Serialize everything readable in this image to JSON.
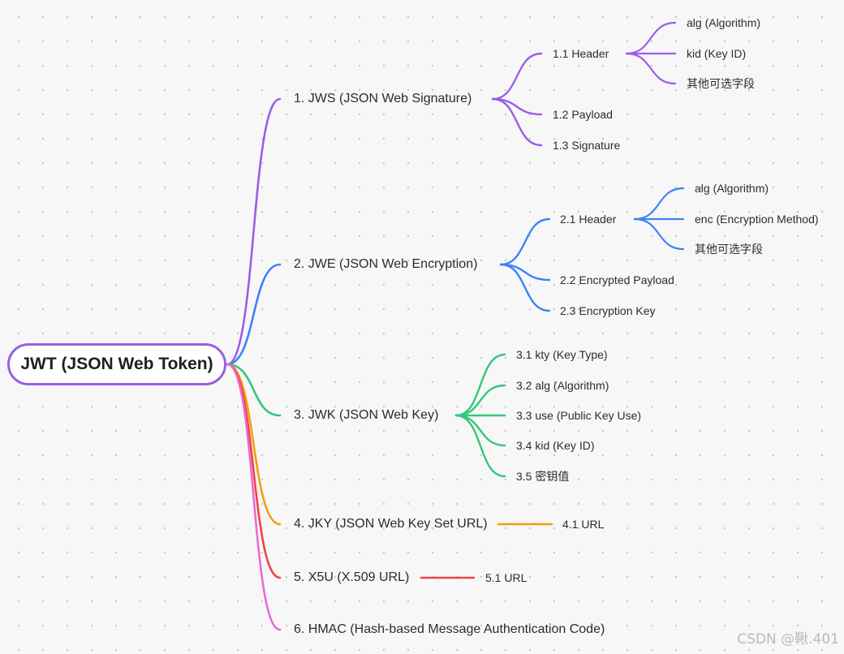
{
  "root": {
    "label": "JWT (JSON Web Token)",
    "color": "#9b5de5"
  },
  "branches": [
    {
      "label": "1. JWS (JSON Web Signature)",
      "color": "#9b5de5",
      "children": [
        {
          "label": "1.1 Header",
          "children": [
            "alg (Algorithm)",
            "kid (Key ID)",
            "其他可选字段"
          ]
        },
        {
          "label": "1.2 Payload",
          "children": []
        },
        {
          "label": "1.3 Signature",
          "children": []
        }
      ]
    },
    {
      "label": "2. JWE (JSON Web Encryption)",
      "color": "#3b82f6",
      "children": [
        {
          "label": "2.1 Header",
          "children": [
            "alg (Algorithm)",
            "enc (Encryption Method)",
            "其他可选字段"
          ]
        },
        {
          "label": "2.2 Encrypted Payload",
          "children": []
        },
        {
          "label": "2.3 Encryption Key",
          "children": []
        }
      ]
    },
    {
      "label": "3. JWK (JSON Web Key)",
      "color": "#34c77b",
      "children": [
        {
          "label": "3.1 kty (Key Type)",
          "children": []
        },
        {
          "label": "3.2 alg (Algorithm)",
          "children": []
        },
        {
          "label": "3.3 use (Public Key Use)",
          "children": []
        },
        {
          "label": "3.4 kid (Key ID)",
          "children": []
        },
        {
          "label": "3.5 密钥值",
          "children": []
        }
      ]
    },
    {
      "label": "4. JKY (JSON Web Key Set URL)",
      "color": "#f59e0b",
      "children": [
        {
          "label": "4.1 URL",
          "children": []
        }
      ]
    },
    {
      "label": "5. X5U (X.509 URL)",
      "color": "#ef4444",
      "children": [
        {
          "label": "5.1 URL",
          "children": []
        }
      ]
    },
    {
      "label": "6. HMAC (Hash-based Message Authentication Code)",
      "color": "#e86ad8",
      "children": []
    }
  ],
  "watermark": "CSDN @鞦.401"
}
